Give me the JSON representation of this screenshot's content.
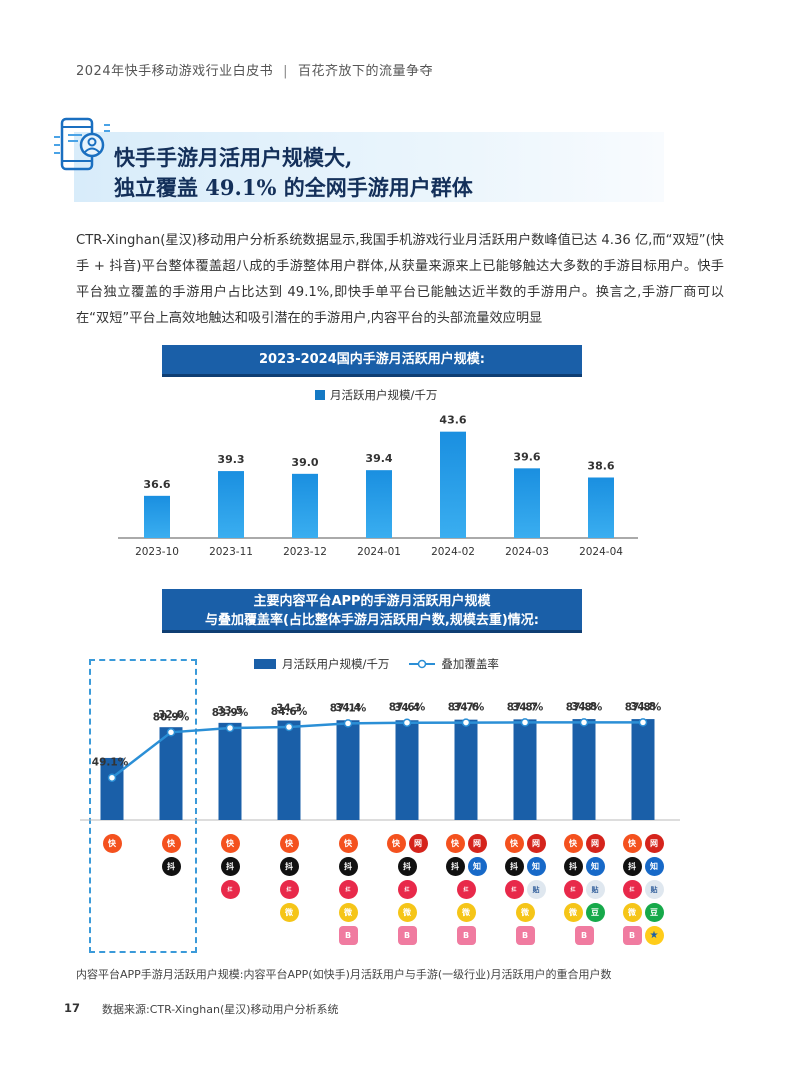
{
  "header": {
    "left": "2024年快手移动游戏行业白皮书",
    "separator": "|",
    "right": "百花齐放下的流量争夺"
  },
  "section": {
    "title_line1": "快手手游月活用户规模大,",
    "title_line2": "独立覆盖 49.1% 的全网手游用户群体",
    "icon": "phone-user-icon"
  },
  "intro": "CTR-Xinghan(星汉)移动用户分析系统数据显示,我国手机游戏行业月活跃用户数峰值已达 4.36 亿,而“双短”(快手 + 抖音)平台整体覆盖超八成的手游整体用户群体,从获量来源来上已能够触达大多数的手游目标用户。快手平台独立覆盖的手游用户占比达到 49.1%,即快手单平台已能触达近半数的手游用户。换言之,手游厂商可以在“双短”平台上高效地触达和吸引潜在的手游用户,内容平台的头部流量效应明显",
  "chart_data": [
    {
      "type": "bar",
      "title": "2023-2024国内手游月活跃用户规模:",
      "legend": "月活跃用户规模/千万",
      "categories": [
        "2023-10",
        "2023-11",
        "2023-12",
        "2024-01",
        "2024-02",
        "2024-03",
        "2024-04"
      ],
      "values": [
        36.6,
        39.3,
        39.0,
        39.4,
        43.6,
        39.6,
        38.6
      ],
      "value_labels": [
        "36.6",
        "39.3",
        "39.0",
        "39.4",
        "43.6",
        "39.6",
        "38.6"
      ],
      "ylim": [
        32,
        44
      ],
      "color": "#1479c4",
      "grid": false
    },
    {
      "type": "bar+line",
      "title_line1": "主要内容平台APP的手游月活跃用户规模",
      "title_line2": "与叠加覆盖率(占比整体手游月活跃用户数,规模去重)情况:",
      "series": [
        {
          "name": "月活跃用户规模/千万",
          "type": "bar",
          "values": [
            21.4,
            32.0,
            33.5,
            34.3,
            34.4,
            34.4,
            34.6,
            34.7,
            34.8,
            34.8
          ],
          "labels": [
            "",
            "32.0",
            "33.5",
            "34.3",
            "34.4",
            "34.4",
            "34.6",
            "34.7",
            "34.8",
            "34.8"
          ]
        },
        {
          "name": "叠加覆盖率",
          "type": "line",
          "values": [
            49.1,
            80.9,
            83.9,
            84.6,
            87.1,
            87.6,
            87.7,
            87.8,
            87.8,
            87.8
          ],
          "labels": [
            "49.1%",
            "80.9%",
            "83.9%",
            "84.6%",
            "87.1%",
            "87.6%",
            "87.7%",
            "87.8%",
            "87.8%",
            "87.8%"
          ]
        }
      ],
      "bar_color": "#1a5fa8",
      "line_color": "#2b8fd6",
      "platforms": [
        [
          "快"
        ],
        [
          "快",
          "抖"
        ],
        [
          "快",
          "抖",
          "红"
        ],
        [
          "快",
          "抖",
          "红",
          "微"
        ],
        [
          "快",
          "抖",
          "红",
          "微",
          "B"
        ],
        [
          "快",
          "网",
          "抖",
          "红",
          "微",
          "B"
        ],
        [
          "快",
          "网",
          "抖",
          "知",
          "红",
          "微",
          "B"
        ],
        [
          "快",
          "网",
          "抖",
          "知",
          "红",
          "贴",
          "微",
          "B"
        ],
        [
          "快",
          "网",
          "抖",
          "知",
          "红",
          "贴",
          "微",
          "豆",
          "B"
        ],
        [
          "快",
          "网",
          "抖",
          "知",
          "红",
          "贴",
          "微",
          "豆",
          "B",
          "★"
        ]
      ]
    }
  ],
  "footnote": "内容平台APP手游月活跃用户规模:内容平台APP(如快手)月活跃用户与手游(一级行业)月活跃用户的重合用户数",
  "page_number": "17",
  "source": "数据来源:CTR-Xinghan(星汉)移动用户分析系统"
}
